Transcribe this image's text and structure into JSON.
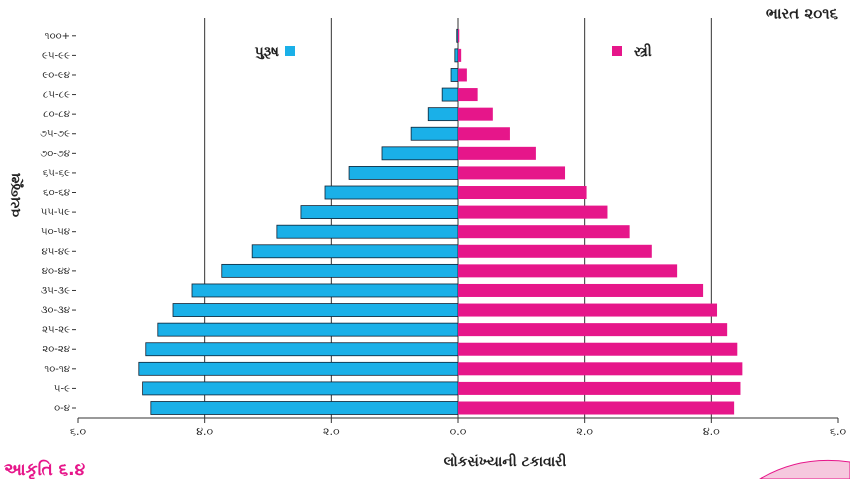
{
  "chart_data": {
    "type": "pyramid",
    "title": "ભારત ૨૦૧૬",
    "y_label": "વયજૂથ",
    "x_label": "લોકસંખ્યાની ટકાવારી",
    "caption": "આકૃતિ ૬.૪",
    "categories": [
      "૦-૪",
      "૫-૯",
      "૧૦-૧૪",
      "૨૦-૨૪",
      "૨૫-૨૯",
      "૩૦-૩૪",
      "૩૫-૩૯",
      "૪૦-૪૪",
      "૪૫-૪૯",
      "૫૦-૫૪",
      "૫૫-૫૯",
      "૬૦-૬૪",
      "૬૫-૬૯",
      "૭૦-૭૪",
      "૭૫-૭૯",
      "૮૦-૮૪",
      "૮૫-૮૯",
      "૯૦-૯૪",
      "૯૫-૯૯",
      "૧૦૦+"
    ],
    "series": [
      {
        "name": "પુરૂષ",
        "color": "#1ab0e8",
        "values": [
          4.85,
          4.98,
          5.04,
          4.93,
          4.74,
          4.5,
          4.2,
          3.73,
          3.25,
          2.86,
          2.48,
          2.1,
          1.72,
          1.2,
          0.74,
          0.47,
          0.25,
          0.11,
          0.05,
          0.02
        ]
      },
      {
        "name": "સ્ત્રી",
        "color": "#e6168a",
        "values": [
          4.36,
          4.46,
          4.49,
          4.41,
          4.25,
          4.09,
          3.87,
          3.46,
          3.06,
          2.71,
          2.36,
          2.03,
          1.69,
          1.23,
          0.82,
          0.55,
          0.31,
          0.14,
          0.05,
          0.02
        ]
      }
    ],
    "xlim": [
      -6,
      6
    ],
    "xticks": [
      {
        "value": -6,
        "label": "૬.૦"
      },
      {
        "value": -4,
        "label": "૪.૦"
      },
      {
        "value": -2,
        "label": "૨.૦"
      },
      {
        "value": 0,
        "label": "૦.૦"
      },
      {
        "value": 2,
        "label": "૨.૦"
      },
      {
        "value": 4,
        "label": "૪.૦"
      },
      {
        "value": 6,
        "label": "૬.૦"
      }
    ],
    "grid": true
  }
}
